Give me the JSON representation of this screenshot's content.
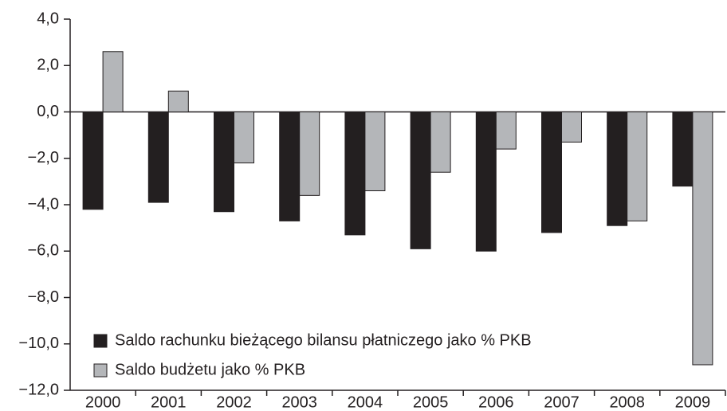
{
  "chart_data": {
    "type": "bar",
    "categories": [
      "2000",
      "2001",
      "2002",
      "2003",
      "2004",
      "2005",
      "2006",
      "2007",
      "2008",
      "2009"
    ],
    "series": [
      {
        "name": "Saldo rachunku bieżącego bilansu płatniczego jako % PKB",
        "color": "#231f20",
        "values": [
          -4.2,
          -3.9,
          -4.3,
          -4.7,
          -5.3,
          -5.9,
          -6.0,
          -5.2,
          -4.9,
          -3.2
        ]
      },
      {
        "name": "Saldo budżetu jako % PKB",
        "color": "#b4b6b9",
        "values": [
          2.6,
          0.9,
          -2.2,
          -3.6,
          -3.4,
          -2.6,
          -1.6,
          -1.3,
          -4.7,
          -10.9
        ]
      }
    ],
    "ylim": [
      -12,
      4
    ],
    "yticks": [
      {
        "value": 4,
        "label": "4,0"
      },
      {
        "value": 2,
        "label": "2,0"
      },
      {
        "value": 0,
        "label": "0,0"
      },
      {
        "value": -2,
        "label": "−2,0"
      },
      {
        "value": -4,
        "label": "−4,0"
      },
      {
        "value": -6,
        "label": "−6,0"
      },
      {
        "value": -8,
        "label": "−8,0"
      },
      {
        "value": -10,
        "label": "−10,0"
      },
      {
        "value": -12,
        "label": "−12,0"
      }
    ],
    "grid": false,
    "legend": "lower left"
  }
}
